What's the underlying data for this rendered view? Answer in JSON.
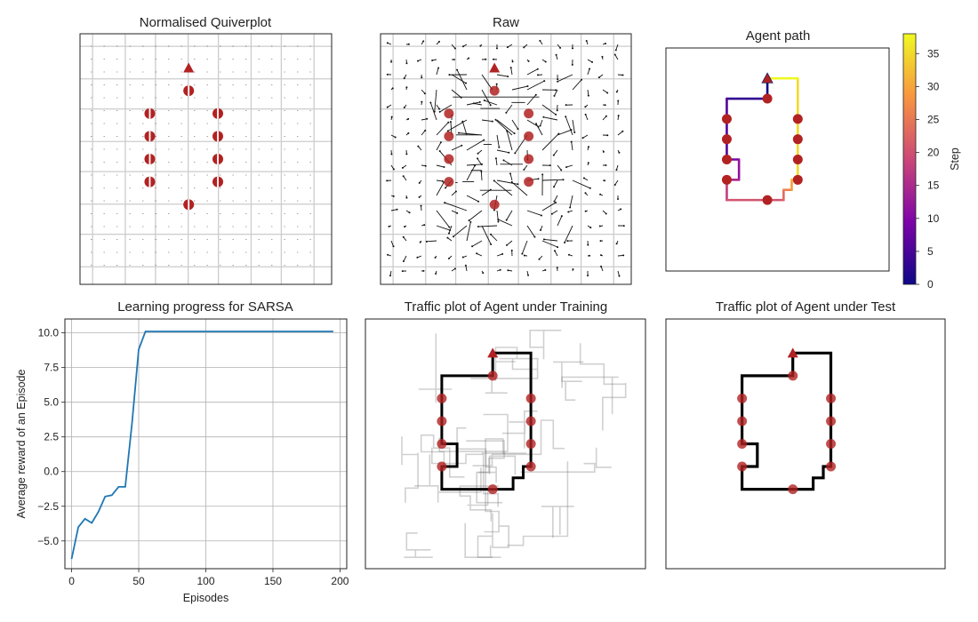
{
  "panels": {
    "quiver_normalised": {
      "title": "Normalised Quiverplot"
    },
    "quiver_raw": {
      "title": "Raw"
    },
    "agent_path": {
      "title": "Agent path"
    },
    "learning": {
      "title": "Learning progress for SARSA"
    },
    "traffic_train": {
      "title": "Traffic plot of Agent under Training"
    },
    "traffic_test": {
      "title": "Traffic plot of Agent under Test"
    }
  },
  "colorbar": {
    "label": "Step",
    "min": 0,
    "max": 38,
    "ticks": [
      "0",
      "5",
      "10",
      "15",
      "20",
      "25",
      "30",
      "35"
    ],
    "colormap": "plasma"
  },
  "colors": {
    "marker": "#b22222",
    "line": "#1f77b4",
    "grid": "#cccccc",
    "arrow": "#111111",
    "traffic": "#000000"
  },
  "maze": {
    "grid_size": 11,
    "start": [
      5,
      9.5
    ],
    "rewards": [
      [
        5,
        8.5
      ],
      [
        3,
        7.5
      ],
      [
        6.5,
        7.5
      ],
      [
        3,
        6.5
      ],
      [
        6.5,
        6.5
      ],
      [
        3,
        5.5
      ],
      [
        6.5,
        5.5
      ],
      [
        3,
        4.5
      ],
      [
        6.5,
        4.5
      ],
      [
        5,
        3.5
      ]
    ],
    "test_path": [
      [
        5,
        9.5
      ],
      [
        6.5,
        9.5
      ],
      [
        6.5,
        4.5
      ],
      [
        6.2,
        4.5
      ],
      [
        6.2,
        4.0
      ],
      [
        5.8,
        4.0
      ],
      [
        5.8,
        3.5
      ],
      [
        3,
        3.5
      ],
      [
        3,
        4.5
      ],
      [
        3.6,
        4.5
      ],
      [
        3.6,
        5.5
      ],
      [
        3,
        5.5
      ],
      [
        3,
        8.5
      ],
      [
        5,
        8.5
      ],
      [
        5,
        9.5
      ]
    ]
  },
  "chart_data": [
    {
      "type": "line",
      "title": "Learning progress for SARSA",
      "xlabel": "Episodes",
      "ylabel": "Average reward of an Episode",
      "xlim": [
        -5,
        205
      ],
      "ylim": [
        -7.0,
        11.0
      ],
      "xticks": [
        0,
        50,
        100,
        150,
        200
      ],
      "yticks": [
        -5.0,
        -2.5,
        0.0,
        2.5,
        5.0,
        7.5,
        10.0
      ],
      "xtick_labels": [
        "0",
        "50",
        "100",
        "150",
        "200"
      ],
      "ytick_labels": [
        "−5.0",
        "−2.5",
        "0.0",
        "2.5",
        "5.0",
        "7.5",
        "10.0"
      ],
      "grid": true,
      "series": [
        {
          "x": [
            0,
            5,
            10,
            15,
            20,
            25,
            30,
            35,
            40,
            45,
            50,
            55,
            60,
            100,
            150,
            195
          ],
          "values": [
            -6.3,
            -4.0,
            -3.4,
            -3.7,
            -2.9,
            -1.8,
            -1.7,
            -1.1,
            -1.1,
            3.5,
            8.8,
            10.1,
            10.1,
            10.1,
            10.1,
            10.1
          ]
        }
      ]
    }
  ]
}
